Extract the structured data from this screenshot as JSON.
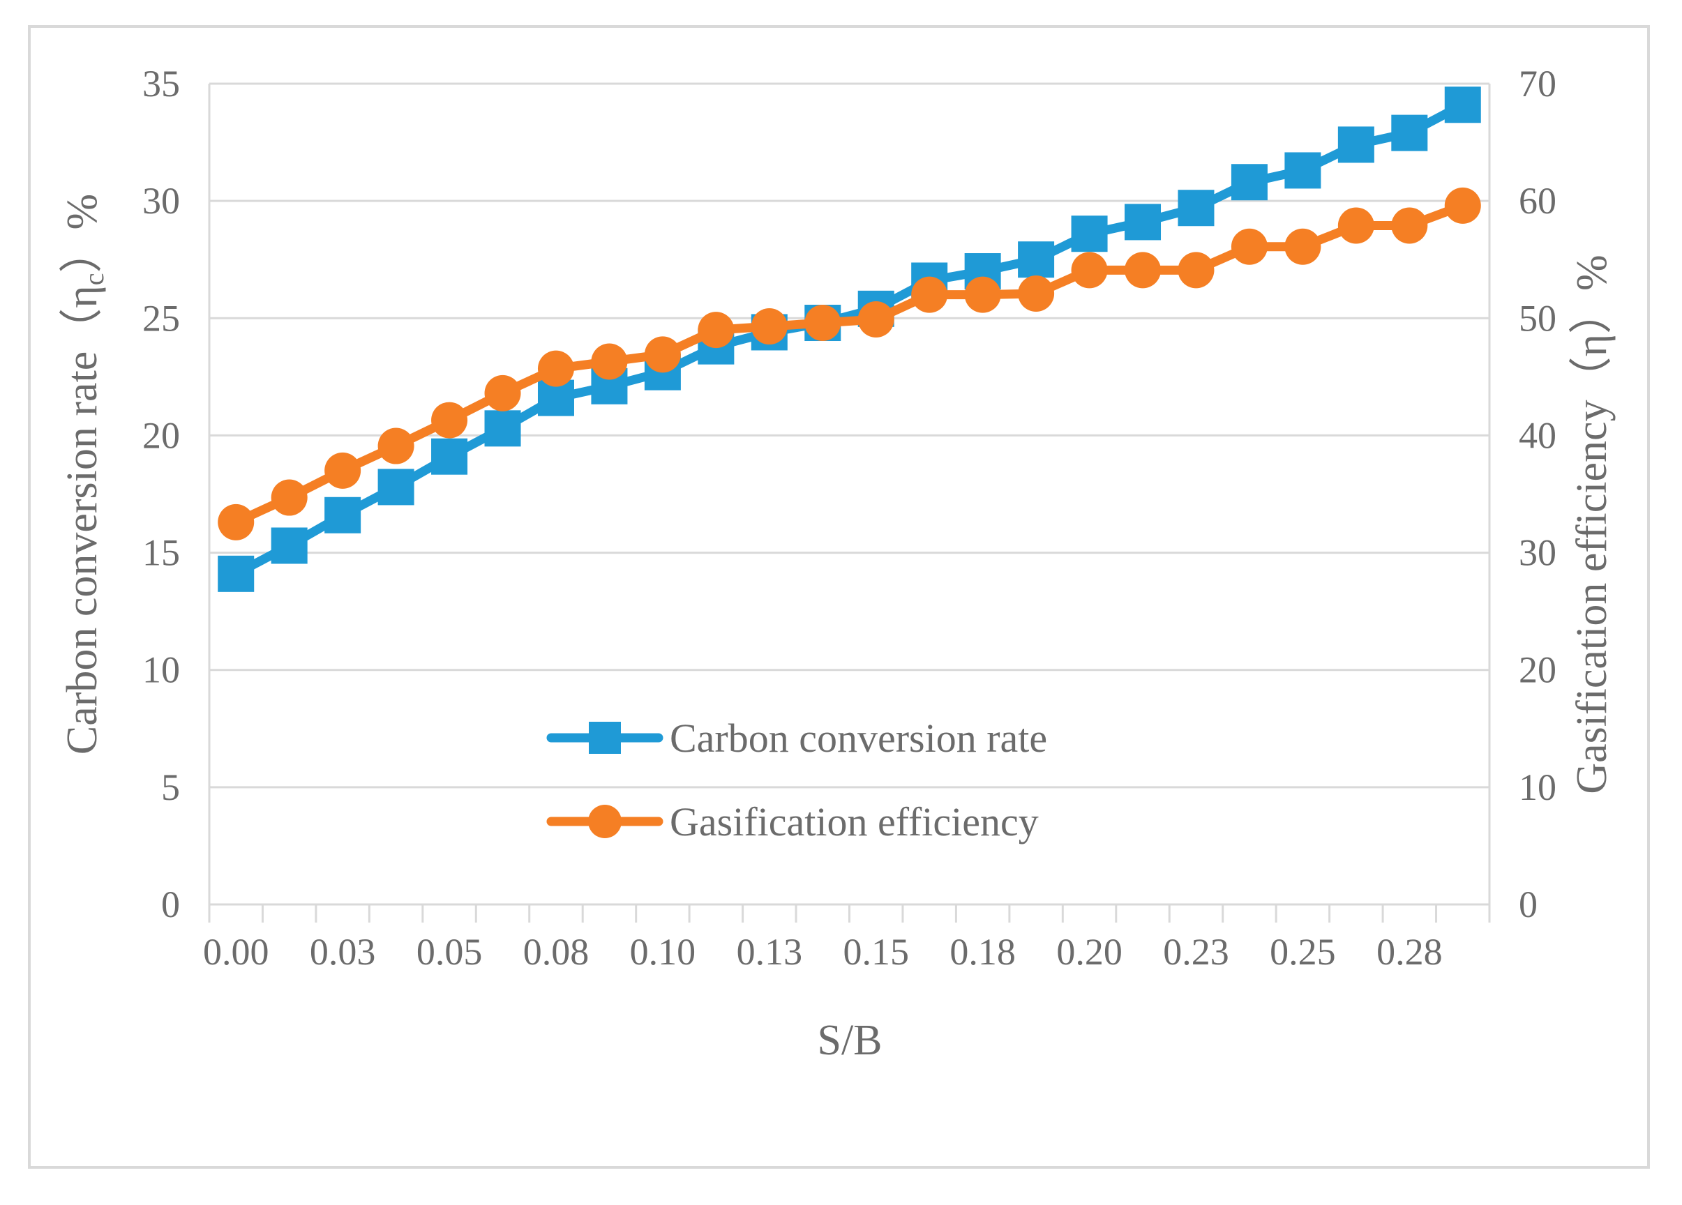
{
  "chart_data": {
    "type": "line",
    "title": "",
    "xlabel": "S/B",
    "ylabel_left": "Carbon conversion rate（ηc）%",
    "ylabel_left_parts": {
      "main": "Carbon conversion rate（η",
      "sub": "c",
      "tail": "）%"
    },
    "ylabel_right": "Gasification efficiency（η）%",
    "x_tick_labels": [
      "0.00",
      "0.03",
      "0.05",
      "0.08",
      "0.10",
      "0.13",
      "0.15",
      "0.18",
      "0.20",
      "0.23",
      "0.25",
      "0.28"
    ],
    "y_left_ticks": [
      "0",
      "5",
      "10",
      "15",
      "20",
      "25",
      "30",
      "35"
    ],
    "y_right_ticks": [
      "0",
      "10",
      "20",
      "30",
      "40",
      "50",
      "60",
      "70"
    ],
    "ylim_left": [
      0,
      35
    ],
    "ylim_right": [
      0,
      70
    ],
    "grid": true,
    "legend_position": "center",
    "x": [
      0.005,
      0.015,
      0.025,
      0.035,
      0.045,
      0.055,
      0.065,
      0.075,
      0.085,
      0.095,
      0.105,
      0.115,
      0.125,
      0.135,
      0.145,
      0.155,
      0.165,
      0.175,
      0.185,
      0.195,
      0.205,
      0.215,
      0.225,
      0.235
    ],
    "series": [
      {
        "name": "Carbon conversion rate",
        "axis": "left",
        "marker": "square",
        "color": "#1f9ad6",
        "values": [
          14.1,
          15.3,
          16.6,
          17.8,
          19.1,
          20.3,
          21.6,
          22.1,
          22.7,
          23.8,
          24.4,
          24.8,
          25.4,
          26.6,
          27.0,
          27.5,
          28.6,
          29.1,
          29.7,
          30.8,
          31.3,
          32.4,
          32.9,
          34.1
        ]
      },
      {
        "name": "Gasification efficiency",
        "axis": "right",
        "marker": "circle",
        "color": "#f57f24",
        "values": [
          32.6,
          34.7,
          37.0,
          39.1,
          41.3,
          43.6,
          45.7,
          46.3,
          46.9,
          49.0,
          49.3,
          49.6,
          49.9,
          52.0,
          52.0,
          52.1,
          54.1,
          54.1,
          54.1,
          56.1,
          56.1,
          57.9,
          57.9,
          59.6
        ]
      }
    ]
  }
}
